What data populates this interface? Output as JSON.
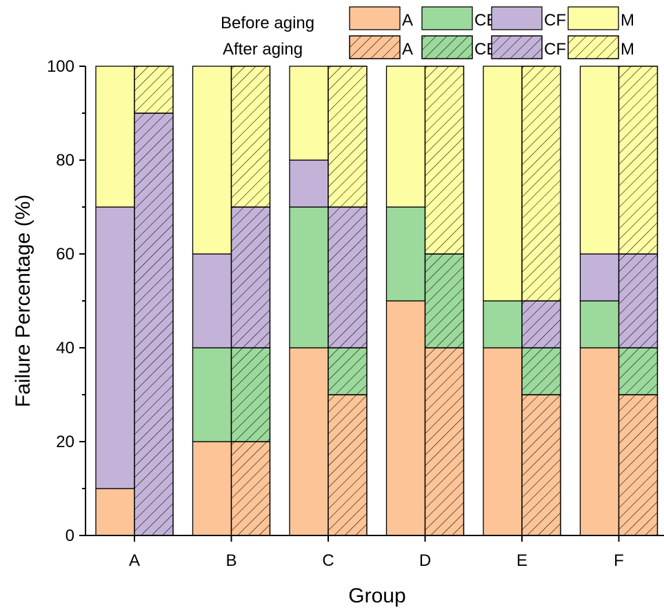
{
  "chart_data": {
    "type": "bar",
    "stacked": true,
    "categories": [
      "A",
      "B",
      "C",
      "D",
      "E",
      "F"
    ],
    "xlabel": "Group",
    "ylabel": "Failure Percentage (%)",
    "ylim": [
      0,
      100
    ],
    "yticks": [
      0,
      20,
      40,
      60,
      80,
      100
    ],
    "grid": false,
    "legend_position": "top",
    "components": [
      "A",
      "CE",
      "CF",
      "M"
    ],
    "component_colors": {
      "A": "#FDC497",
      "CE": "#9CD99C",
      "CF": "#C4B3D9",
      "M": "#FDFDA3"
    },
    "groups": [
      {
        "name": "Before aging",
        "hatched": false,
        "series": [
          {
            "name": "A",
            "values": [
              10,
              20,
              40,
              50,
              40,
              40
            ]
          },
          {
            "name": "CE",
            "values": [
              0,
              20,
              30,
              20,
              10,
              10
            ]
          },
          {
            "name": "CF",
            "values": [
              60,
              20,
              10,
              0,
              0,
              10
            ]
          },
          {
            "name": "M",
            "values": [
              30,
              40,
              20,
              30,
              50,
              40
            ]
          }
        ]
      },
      {
        "name": "After aging",
        "hatched": true,
        "series": [
          {
            "name": "A",
            "values": [
              0,
              20,
              30,
              40,
              30,
              30
            ]
          },
          {
            "name": "CE",
            "values": [
              0,
              20,
              10,
              20,
              10,
              10
            ]
          },
          {
            "name": "CF",
            "values": [
              90,
              30,
              30,
              0,
              10,
              20
            ]
          },
          {
            "name": "M",
            "values": [
              10,
              30,
              30,
              40,
              50,
              40
            ]
          }
        ]
      }
    ]
  }
}
